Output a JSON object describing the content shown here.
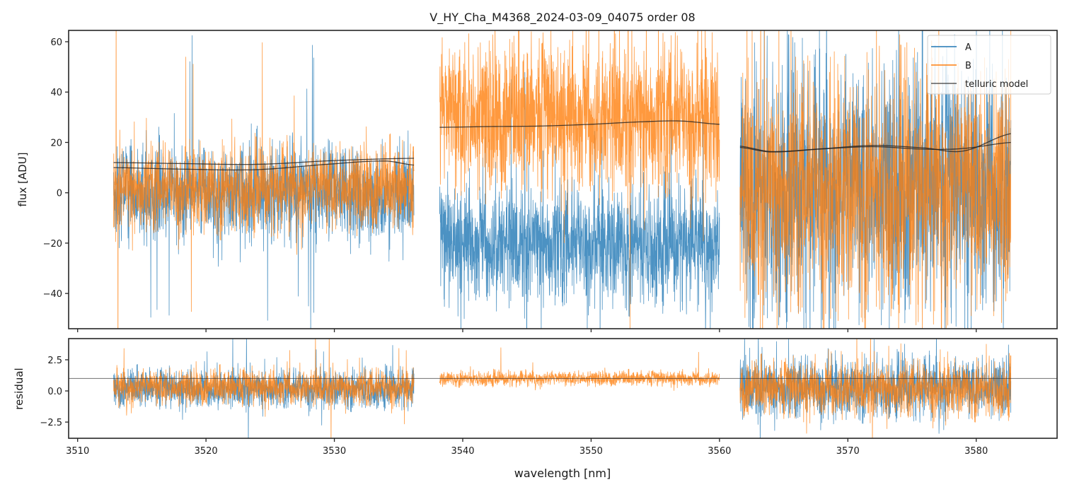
{
  "chart_data": [
    {
      "panel": "flux",
      "type": "line",
      "title": "V_HY_Cha_M4368_2024-03-09_04075  order 08",
      "xlabel": "",
      "ylabel": "flux [ADU]",
      "xlim": [
        3509.3,
        3586.3
      ],
      "ylim": [
        -54,
        64.5
      ],
      "yticks": [
        -40,
        -20,
        0,
        20,
        40,
        60
      ],
      "ytick_labels": [
        "−40",
        "−20",
        "0",
        "20",
        "40",
        "60"
      ],
      "xticks": [
        3510,
        3520,
        3530,
        3540,
        3550,
        3560,
        3570,
        3580
      ],
      "grid": false,
      "legend": {
        "placement": "top-right",
        "entries": [
          {
            "label": "A",
            "color": "#1f77b4"
          },
          {
            "label": "B",
            "color": "#ff7f0e"
          },
          {
            "label": "telluric model",
            "color": "#333333"
          }
        ]
      },
      "segments": [
        {
          "x_range": [
            3512.8,
            3536.2
          ],
          "series": [
            {
              "name": "A",
              "color": "#1f77b4",
              "mean": 0,
              "sigma": 11,
              "spike_max": 55
            },
            {
              "name": "B",
              "color": "#ff7f0e",
              "mean": 2,
              "sigma": 10,
              "spike_max": 70
            }
          ],
          "telluric_model": [
            {
              "x": [
                3512.8,
                3518,
                3524,
                3530,
                3536.2
              ],
              "y": [
                12.0,
                11.6,
                11.3,
                12.8,
                13.7
              ]
            },
            {
              "x": [
                3512.8,
                3518,
                3524,
                3530,
                3534,
                3536.2
              ],
              "y": [
                10.0,
                9.4,
                9.2,
                11.5,
                12.6,
                11.0
              ]
            }
          ]
        },
        {
          "x_range": [
            3538.2,
            3560.0
          ],
          "series": [
            {
              "name": "A",
              "color": "#1f77b4",
              "mean": -20,
              "sigma": 14,
              "spike_max": 60
            },
            {
              "name": "B",
              "color": "#ff7f0e",
              "mean": 30,
              "sigma": 18,
              "spike_max": 70
            }
          ],
          "telluric_model": [
            {
              "x": [
                3538.2,
                3542,
                3546,
                3550,
                3554,
                3557,
                3560.0
              ],
              "y": [
                26.0,
                26.3,
                26.5,
                27.2,
                28.2,
                28.5,
                27.2
              ]
            }
          ]
        },
        {
          "x_range": [
            3561.6,
            3582.7
          ],
          "series": [
            {
              "name": "A",
              "color": "#1f77b4",
              "mean": 2,
              "sigma": 30,
              "spike_max": 70
            },
            {
              "name": "B",
              "color": "#ff7f0e",
              "mean": 2,
              "sigma": 28,
              "spike_max": 70
            }
          ],
          "telluric_model": [
            {
              "x": [
                3561.6,
                3564,
                3568,
                3572,
                3576,
                3579,
                3582.7
              ],
              "y": [
                18.5,
                16.4,
                17.5,
                18.8,
                17.8,
                16.6,
                23.5
              ]
            },
            {
              "x": [
                3561.6,
                3564,
                3568,
                3572,
                3576,
                3579,
                3582.7
              ],
              "y": [
                18.0,
                16.2,
                17.4,
                18.3,
                17.3,
                17.6,
                20.0
              ]
            }
          ]
        }
      ]
    },
    {
      "panel": "residual",
      "type": "line",
      "title": "",
      "xlabel": "wavelength [nm]",
      "ylabel": "residual",
      "xlim": [
        3509.3,
        3586.3
      ],
      "ylim": [
        -3.8,
        4.2
      ],
      "yticks": [
        -2.5,
        0.0,
        2.5
      ],
      "ytick_labels": [
        "−2.5",
        "0.0",
        "2.5"
      ],
      "xticks": [
        3510,
        3520,
        3530,
        3540,
        3550,
        3560,
        3570,
        3580
      ],
      "xtick_labels": [
        "3510",
        "3520",
        "3530",
        "3540",
        "3550",
        "3560",
        "3570",
        "3580"
      ],
      "reference_line": 1.0,
      "grid": false,
      "segments": [
        {
          "x_range": [
            3512.8,
            3536.2
          ],
          "series": [
            {
              "name": "A",
              "color": "#1f77b4",
              "mean": 0.2,
              "sigma": 0.9,
              "spike_max": 4.2
            },
            {
              "name": "B",
              "color": "#ff7f0e",
              "mean": 0.3,
              "sigma": 0.85,
              "spike_max": 4.2
            }
          ]
        },
        {
          "x_range": [
            3538.2,
            3560.0
          ],
          "series": [
            {
              "name": "B",
              "color": "#ff7f0e",
              "mean": 1.0,
              "sigma": 0.35,
              "spike_max": 3.0
            }
          ]
        },
        {
          "x_range": [
            3561.6,
            3582.7
          ],
          "series": [
            {
              "name": "A",
              "color": "#1f77b4",
              "mean": 0.3,
              "sigma": 1.4,
              "spike_max": 4.2
            },
            {
              "name": "B",
              "color": "#ff7f0e",
              "mean": 0.2,
              "sigma": 1.3,
              "spike_max": 4.2
            }
          ]
        }
      ]
    }
  ]
}
